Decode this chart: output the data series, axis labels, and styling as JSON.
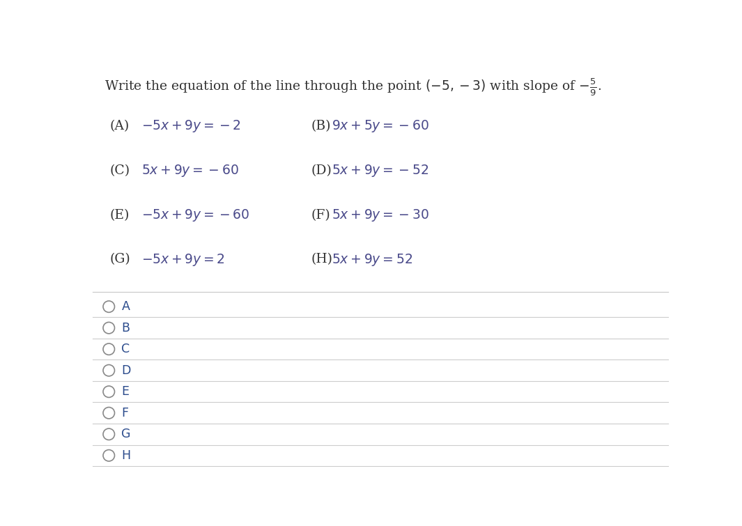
{
  "background_color": "#ffffff",
  "text_color": "#333333",
  "options_color": "#4a4a8a",
  "choices": [
    [
      "(A)",
      "$-5x + 9y = -2$",
      "(B)",
      "$9x + 5y = -60$"
    ],
    [
      "(C)",
      "$5x + 9y = -60$",
      "(D)",
      "$5x + 9y = -52$"
    ],
    [
      "(E)",
      "$-5x + 9y = -60$",
      "(F)",
      "$5x + 9y = -30$"
    ],
    [
      "(G)",
      "$-5x + 9y = 2$",
      "(H)",
      "$5x + 9y = 52$"
    ]
  ],
  "radio_labels": [
    "A",
    "B",
    "C",
    "D",
    "E",
    "F",
    "G",
    "H"
  ],
  "separator_color": "#cccccc",
  "radio_color": "#888888",
  "radio_label_color": "#2b4b8c"
}
